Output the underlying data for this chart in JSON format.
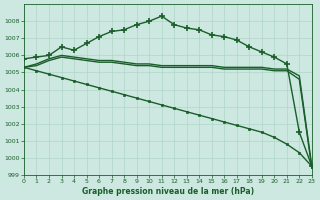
{
  "bg_color": "#cce8e0",
  "grid_color": "#b0d4c8",
  "line_color": "#1a5e2a",
  "xlabel": "Graphe pression niveau de la mer (hPa)",
  "ylim": [
    999,
    1009
  ],
  "xlim": [
    0,
    23
  ],
  "yticks": [
    999,
    1000,
    1001,
    1002,
    1003,
    1004,
    1005,
    1006,
    1007,
    1008
  ],
  "xticks": [
    0,
    1,
    2,
    3,
    4,
    5,
    6,
    7,
    8,
    9,
    10,
    11,
    12,
    13,
    14,
    15,
    16,
    17,
    18,
    19,
    20,
    21,
    22,
    23
  ],
  "series": [
    {
      "x": [
        0,
        1,
        2,
        3,
        4,
        5,
        6,
        7,
        8,
        9,
        10,
        11,
        12,
        13,
        14,
        15,
        16,
        17,
        18,
        19,
        20,
        21,
        22,
        23
      ],
      "y": [
        1005.8,
        1005.9,
        1006.0,
        1006.5,
        1006.3,
        1006.7,
        1007.1,
        1007.4,
        1007.5,
        1007.8,
        1008.0,
        1008.3,
        1007.8,
        1007.6,
        1007.5,
        1007.2,
        1007.1,
        1006.9,
        1006.5,
        1006.2,
        1005.9,
        1005.5,
        1001.5,
        999.5
      ],
      "marker": "+",
      "markersize": 4,
      "linewidth": 1.0,
      "markeredgewidth": 1.2
    },
    {
      "x": [
        0,
        1,
        2,
        3,
        4,
        5,
        6,
        7,
        8,
        9,
        10,
        11,
        12,
        13,
        14,
        15,
        16,
        17,
        18,
        19,
        20,
        21,
        22,
        23
      ],
      "y": [
        1005.3,
        1005.1,
        1004.9,
        1004.7,
        1004.5,
        1004.3,
        1004.1,
        1003.9,
        1003.7,
        1003.5,
        1003.3,
        1003.1,
        1002.9,
        1002.7,
        1002.5,
        1002.3,
        1002.1,
        1001.9,
        1001.7,
        1001.5,
        1001.2,
        1000.8,
        1000.3,
        999.5
      ],
      "marker": "s",
      "markersize": 2,
      "linewidth": 1.0,
      "markeredgewidth": 0.5
    },
    {
      "x": [
        0,
        1,
        2,
        3,
        4,
        5,
        6,
        7,
        8,
        9,
        10,
        11,
        12,
        13,
        14,
        15,
        16,
        17,
        18,
        19,
        20,
        21,
        22,
        23
      ],
      "y": [
        1005.3,
        1005.5,
        1005.8,
        1006.0,
        1005.9,
        1005.8,
        1005.7,
        1005.7,
        1005.6,
        1005.5,
        1005.5,
        1005.4,
        1005.4,
        1005.4,
        1005.4,
        1005.4,
        1005.3,
        1005.3,
        1005.3,
        1005.3,
        1005.2,
        1005.2,
        1004.8,
        999.5
      ],
      "marker": null,
      "markersize": 0,
      "linewidth": 1.0
    },
    {
      "x": [
        0,
        1,
        2,
        3,
        4,
        5,
        6,
        7,
        8,
        9,
        10,
        11,
        12,
        13,
        14,
        15,
        16,
        17,
        18,
        19,
        20,
        21,
        22,
        23
      ],
      "y": [
        1005.3,
        1005.4,
        1005.7,
        1005.9,
        1005.8,
        1005.7,
        1005.6,
        1005.6,
        1005.5,
        1005.4,
        1005.4,
        1005.3,
        1005.3,
        1005.3,
        1005.3,
        1005.3,
        1005.2,
        1005.2,
        1005.2,
        1005.2,
        1005.1,
        1005.1,
        1004.6,
        999.4
      ],
      "marker": null,
      "markersize": 0,
      "linewidth": 1.0
    }
  ]
}
